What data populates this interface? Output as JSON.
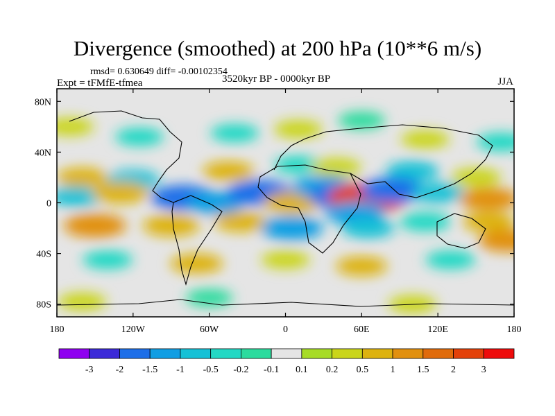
{
  "header": {
    "title": "Divergence (smoothed) at 200 hPa (10**6 m/s)",
    "stats": "rmsd= 0.630649 diff= -0.00102354",
    "experiment": "Expt = tFMfE-tfmea",
    "period": "3520kyr BP - 0000kyr BP",
    "season": "JJA"
  },
  "chart_data": {
    "type": "heatmap",
    "title": "Divergence (smoothed) at 200 hPa (10**6 m/s)",
    "xlabel": "",
    "ylabel": "",
    "xlim": [
      -180,
      180
    ],
    "ylim": [
      -90,
      90
    ],
    "x_ticks": [
      {
        "value": -180,
        "label": "180"
      },
      {
        "value": -120,
        "label": "120W"
      },
      {
        "value": -60,
        "label": "60W"
      },
      {
        "value": 0,
        "label": "0"
      },
      {
        "value": 60,
        "label": "60E"
      },
      {
        "value": 120,
        "label": "120E"
      },
      {
        "value": 180,
        "label": "180"
      }
    ],
    "y_ticks": [
      {
        "value": 80,
        "label": "80N"
      },
      {
        "value": 40,
        "label": "40N"
      },
      {
        "value": 0,
        "label": "0"
      },
      {
        "value": -40,
        "label": "40S"
      },
      {
        "value": -80,
        "label": "80S"
      }
    ],
    "colorbar": {
      "labels": [
        "-3",
        "-2",
        "-1.5",
        "-1",
        "-0.5",
        "-0.2",
        "-0.1",
        "0.1",
        "0.2",
        "0.5",
        "1",
        "1.5",
        "2",
        "3"
      ],
      "colors": [
        "#8f00f0",
        "#3c2ad8",
        "#1d6ee8",
        "#119ee3",
        "#16c1d6",
        "#24d8c4",
        "#2cdb9e",
        "#e5e5e5",
        "#a7dc27",
        "#cad51a",
        "#ddb20f",
        "#e1900e",
        "#e06b0b",
        "#e3410a",
        "#ee0b0b"
      ]
    },
    "features": [
      {
        "lon": -170,
        "lat": 60,
        "value": 0.3
      },
      {
        "lon": -115,
        "lat": 52,
        "value": -0.3
      },
      {
        "lon": -40,
        "lat": 55,
        "value": -0.3
      },
      {
        "lon": 10,
        "lat": 58,
        "value": 0.3
      },
      {
        "lon": 60,
        "lat": 65,
        "value": -0.2
      },
      {
        "lon": 110,
        "lat": 50,
        "value": 0.3
      },
      {
        "lon": 170,
        "lat": 48,
        "value": -0.4
      },
      {
        "lon": -160,
        "lat": 20,
        "value": 0.5
      },
      {
        "lon": -120,
        "lat": 18,
        "value": -0.6
      },
      {
        "lon": -45,
        "lat": 25,
        "value": 0.5
      },
      {
        "lon": 10,
        "lat": 30,
        "value": -0.3
      },
      {
        "lon": 40,
        "lat": 28,
        "value": 0.4
      },
      {
        "lon": 100,
        "lat": 25,
        "value": -0.6
      },
      {
        "lon": 150,
        "lat": 20,
        "value": 0.4
      },
      {
        "lon": -165,
        "lat": 5,
        "value": -0.6
      },
      {
        "lon": -130,
        "lat": 8,
        "value": 0.9
      },
      {
        "lon": -80,
        "lat": 4,
        "value": -1.6
      },
      {
        "lon": -55,
        "lat": 0,
        "value": -1.1
      },
      {
        "lon": -20,
        "lat": 8,
        "value": -1.6
      },
      {
        "lon": 5,
        "lat": 0,
        "value": 0.9
      },
      {
        "lon": 30,
        "lat": 12,
        "value": -1.3
      },
      {
        "lon": 45,
        "lat": 5,
        "value": -1.6
      },
      {
        "lon": 65,
        "lat": 4,
        "value": 2.6
      },
      {
        "lon": 85,
        "lat": 10,
        "value": -1.6
      },
      {
        "lon": 120,
        "lat": 8,
        "value": -0.6
      },
      {
        "lon": 160,
        "lat": 3,
        "value": 1.1
      },
      {
        "lon": -150,
        "lat": -18,
        "value": 1.3
      },
      {
        "lon": -90,
        "lat": -18,
        "value": 0.9
      },
      {
        "lon": -35,
        "lat": -15,
        "value": 0.6
      },
      {
        "lon": 5,
        "lat": -20,
        "value": -1.3
      },
      {
        "lon": 55,
        "lat": -8,
        "value": -1.1
      },
      {
        "lon": 65,
        "lat": -20,
        "value": -0.6
      },
      {
        "lon": 110,
        "lat": -15,
        "value": -0.5
      },
      {
        "lon": 160,
        "lat": -15,
        "value": 0.6
      },
      {
        "lon": -140,
        "lat": -45,
        "value": -0.4
      },
      {
        "lon": -70,
        "lat": -48,
        "value": 0.6
      },
      {
        "lon": 0,
        "lat": -45,
        "value": 0.3
      },
      {
        "lon": 60,
        "lat": -50,
        "value": 0.5
      },
      {
        "lon": 130,
        "lat": -45,
        "value": -0.4
      },
      {
        "lon": 175,
        "lat": -30,
        "value": 1.0
      },
      {
        "lon": -160,
        "lat": -78,
        "value": 0.3
      },
      {
        "lon": -60,
        "lat": -75,
        "value": -0.2
      },
      {
        "lon": 100,
        "lat": -80,
        "value": 0.3
      }
    ]
  }
}
